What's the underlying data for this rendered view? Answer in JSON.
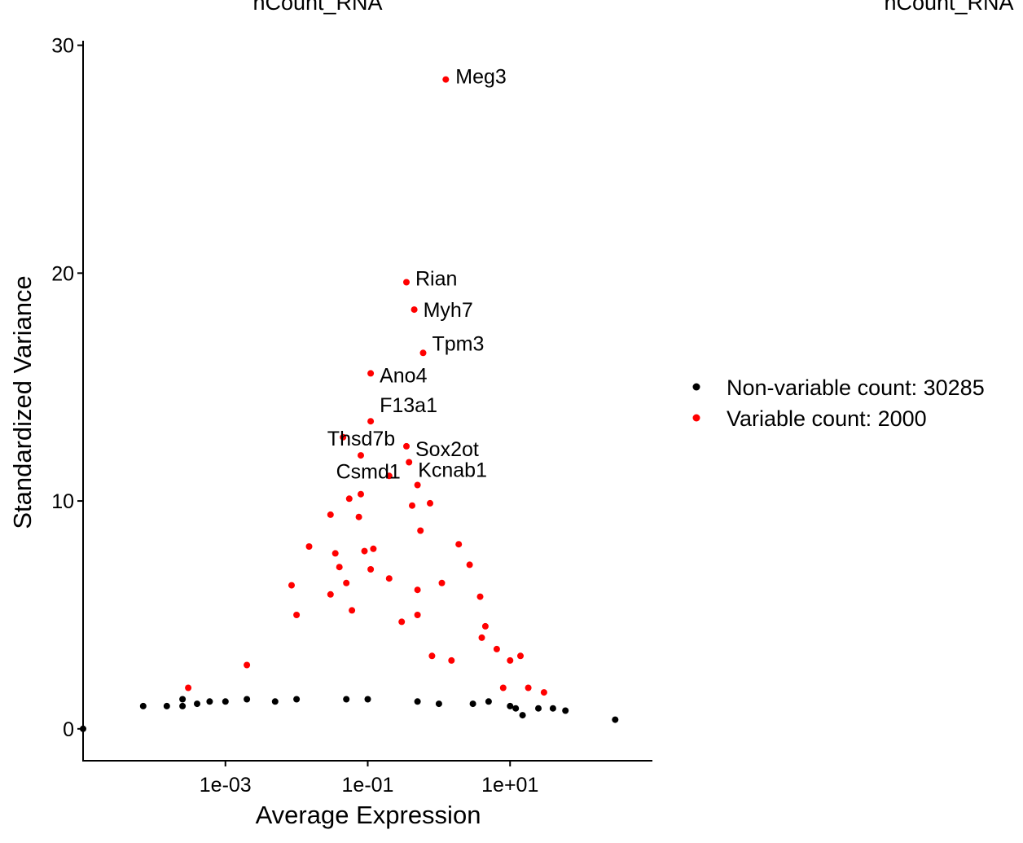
{
  "chart_data": {
    "type": "scatter",
    "title_left": "nCount_RNA",
    "title_right": "nCount_RNA",
    "xlabel": "Average Expression",
    "ylabel": "Standardized Variance",
    "x_scale": "log10",
    "xlim": [
      1e-05,
      1000
    ],
    "ylim": [
      -1.4,
      30.2
    ],
    "x_ticks": [
      {
        "value": 0.001,
        "label": "1e-03"
      },
      {
        "value": 0.1,
        "label": "1e-01"
      },
      {
        "value": 10,
        "label": "1e+01"
      }
    ],
    "y_ticks": [
      {
        "value": 0,
        "label": "0"
      },
      {
        "value": 10,
        "label": "10"
      },
      {
        "value": 20,
        "label": "20"
      },
      {
        "value": 30,
        "label": "30"
      }
    ],
    "grid": false,
    "legend": {
      "placement": "right",
      "entries": [
        {
          "label": "Non-variable count: 30285",
          "color": "#000000"
        },
        {
          "label": "Variable count: 2000",
          "color": "#ff0000"
        }
      ]
    },
    "series": [
      {
        "name": "Non-variable count: 30285",
        "color": "#000000",
        "points": [
          [
            1e-05,
            0.0
          ],
          [
            7e-05,
            1.0
          ],
          [
            0.00015,
            1.0
          ],
          [
            0.00025,
            1.0
          ],
          [
            0.00025,
            1.3
          ],
          [
            0.0004,
            1.1
          ],
          [
            0.0006,
            1.2
          ],
          [
            0.001,
            1.2
          ],
          [
            0.002,
            1.3
          ],
          [
            0.005,
            1.2
          ],
          [
            0.01,
            1.3
          ],
          [
            0.05,
            1.3
          ],
          [
            0.1,
            1.3
          ],
          [
            0.5,
            1.2
          ],
          [
            1.0,
            1.1
          ],
          [
            3.0,
            1.1
          ],
          [
            5.0,
            1.2
          ],
          [
            10.0,
            1.0
          ],
          [
            12.0,
            0.9
          ],
          [
            15.0,
            0.6
          ],
          [
            25.0,
            0.9
          ],
          [
            40.0,
            0.9
          ],
          [
            60.0,
            0.8
          ],
          [
            300.0,
            0.4
          ]
        ]
      },
      {
        "name": "Variable count: 2000",
        "color": "#ff0000",
        "points": [
          [
            1.25,
            28.5
          ],
          [
            0.35,
            19.6
          ],
          [
            0.45,
            18.4
          ],
          [
            0.6,
            16.5
          ],
          [
            0.11,
            15.6
          ],
          [
            0.11,
            13.5
          ],
          [
            0.045,
            12.8
          ],
          [
            0.35,
            12.4
          ],
          [
            0.08,
            12.0
          ],
          [
            0.38,
            11.7
          ],
          [
            0.2,
            11.1
          ],
          [
            0.5,
            10.7
          ],
          [
            0.08,
            10.3
          ],
          [
            0.055,
            10.1
          ],
          [
            0.42,
            9.8
          ],
          [
            0.75,
            9.9
          ],
          [
            0.03,
            9.4
          ],
          [
            0.075,
            9.3
          ],
          [
            1.9,
            8.1
          ],
          [
            0.55,
            8.7
          ],
          [
            0.015,
            8.0
          ],
          [
            0.035,
            7.7
          ],
          [
            0.09,
            7.8
          ],
          [
            0.12,
            7.9
          ],
          [
            2.7,
            7.2
          ],
          [
            0.04,
            7.1
          ],
          [
            0.11,
            7.0
          ],
          [
            0.0085,
            6.3
          ],
          [
            0.05,
            6.4
          ],
          [
            0.2,
            6.6
          ],
          [
            1.1,
            6.4
          ],
          [
            3.8,
            5.8
          ],
          [
            0.03,
            5.9
          ],
          [
            0.5,
            6.1
          ],
          [
            4.5,
            4.5
          ],
          [
            0.01,
            5.0
          ],
          [
            0.06,
            5.2
          ],
          [
            0.3,
            4.7
          ],
          [
            4.0,
            4.0
          ],
          [
            6.5,
            3.5
          ],
          [
            10.0,
            3.0
          ],
          [
            14.0,
            3.2
          ],
          [
            30.0,
            1.6
          ],
          [
            0.0003,
            1.8
          ],
          [
            0.002,
            2.8
          ],
          [
            0.5,
            5.0
          ],
          [
            0.8,
            3.2
          ],
          [
            1.5,
            3.0
          ],
          [
            8.0,
            1.8
          ],
          [
            18.0,
            1.8
          ]
        ]
      }
    ],
    "annotations": [
      {
        "text": "Meg3",
        "x": 1.25,
        "y": 28.5
      },
      {
        "text": "Rian",
        "x": 0.35,
        "y": 19.6
      },
      {
        "text": "Myh7",
        "x": 0.45,
        "y": 18.4
      },
      {
        "text": "Tpm3",
        "x": 0.6,
        "y": 16.5
      },
      {
        "text": "Ano4",
        "x": 0.11,
        "y": 15.6
      },
      {
        "text": "F13a1",
        "x": 0.11,
        "y": 13.5
      },
      {
        "text": "Thsd7b",
        "x": 0.045,
        "y": 12.8
      },
      {
        "text": "Sox2ot",
        "x": 0.35,
        "y": 12.4
      },
      {
        "text": "Kcnab1",
        "x": 0.38,
        "y": 11.7
      },
      {
        "text": "Csmd1",
        "x": 0.2,
        "y": 11.1
      }
    ]
  }
}
